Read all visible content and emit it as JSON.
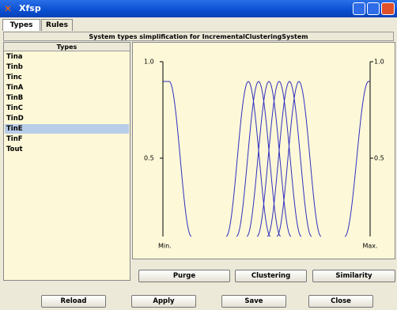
{
  "window": {
    "title": "Xfsp"
  },
  "tabs": [
    "Types",
    "Rules"
  ],
  "header": "System types simplification for IncrementalClusteringSystem",
  "types_list": {
    "title": "Types",
    "items": [
      "Tina",
      "Tinb",
      "Tinc",
      "TinA",
      "TinB",
      "TinC",
      "TinD",
      "TinE",
      "TinF",
      "Tout"
    ],
    "selected": "TinE"
  },
  "plot": {
    "left_labels": [
      "1.0",
      "0.5"
    ],
    "right_labels": [
      "1.0",
      "0.5"
    ],
    "x_min_label": "Min.",
    "x_max_label": "Max."
  },
  "plot_buttons": [
    "Purge",
    "Clustering",
    "Similarity"
  ],
  "bottom_buttons": [
    "Reload",
    "Apply",
    "Save",
    "Close"
  ]
}
